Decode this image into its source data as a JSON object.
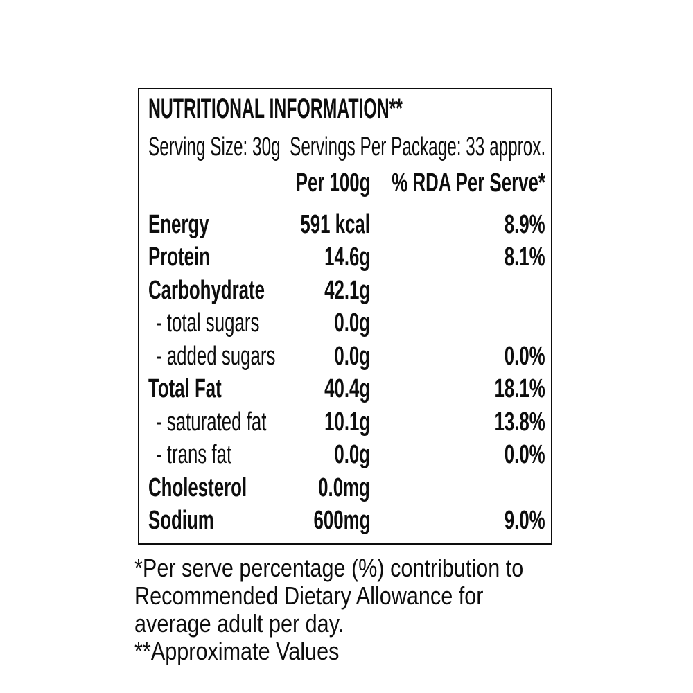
{
  "label": {
    "title": "NUTRITIONAL INFORMATION**",
    "serving_line": "Serving Size: 30g  Servings Per Package: 33 approx.",
    "columns": {
      "per_100g": "Per 100g",
      "rda_per_serve": "% RDA Per Serve*"
    },
    "rows": [
      {
        "name": "Energy",
        "per_100g": "591 kcal",
        "rda": "8.9%"
      },
      {
        "name": "Protein",
        "per_100g": "14.6g",
        "rda": "8.1%"
      },
      {
        "name": "Carbohydrate",
        "per_100g": "42.1g",
        "rda": ""
      },
      {
        "name": "- total sugars",
        "per_100g": "0.0g",
        "rda": ""
      },
      {
        "name": "- added sugars",
        "per_100g": "0.0g",
        "rda": "0.0%"
      },
      {
        "name": "Total Fat",
        "per_100g": "40.4g",
        "rda": "18.1%"
      },
      {
        "name": "- saturated fat",
        "per_100g": "10.1g",
        "rda": "13.8%"
      },
      {
        "name": "- trans fat",
        "per_100g": "0.0g",
        "rda": "0.0%"
      },
      {
        "name": "Cholesterol",
        "per_100g": "0.0mg",
        "rda": ""
      },
      {
        "name": "Sodium",
        "per_100g": "600mg",
        "rda": "9.0%"
      }
    ],
    "footnote_lines": [
      "*Per serve percentage (%) contribution to",
      "Recommended Dietary Allowance for",
      "average adult per day.",
      "**Approximate Values"
    ]
  },
  "colors": {
    "text": "#0d0d0d",
    "border": "#0d0d0d",
    "background": "#ffffff"
  }
}
